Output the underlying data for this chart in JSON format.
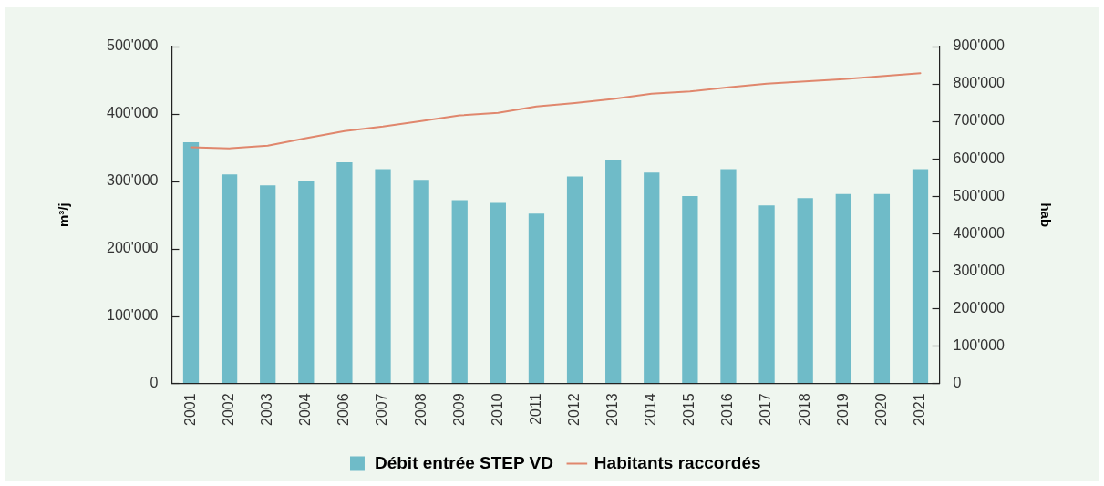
{
  "chart_data": {
    "type": "bar",
    "ylabel": "m³/j",
    "y2label": "hab",
    "categories": [
      "2001",
      "2002",
      "2003",
      "2004",
      "2006",
      "2007",
      "2008",
      "2009",
      "2010",
      "2011",
      "2012",
      "2013",
      "2014",
      "2015",
      "2016",
      "2017",
      "2018",
      "2019",
      "2020",
      "2021"
    ],
    "series": [
      {
        "name": "Débit entrée STEP VD",
        "color": "#6fbbc8",
        "values": [
          358000,
          310000,
          294000,
          300000,
          328000,
          318000,
          302000,
          272000,
          268000,
          252000,
          307000,
          331000,
          313000,
          278000,
          318000,
          264000,
          275000,
          281000,
          281000,
          318000
        ]
      },
      {
        "name": "Habitants raccordés",
        "type": "line",
        "axis": "y2",
        "color": "#e0876d",
        "values": [
          631000,
          628000,
          635000,
          655000,
          674000,
          686000,
          701000,
          716000,
          723000,
          740000,
          749000,
          760000,
          774000,
          780000,
          791000,
          801000,
          807000,
          813000,
          821000,
          829000
        ]
      }
    ],
    "ylim": [
      0,
      500000
    ],
    "yticks": [
      0,
      {
        "value": 100000,
        "label": "100'000"
      },
      {
        "value": 200000,
        "label": "200'000"
      },
      {
        "value": 300000,
        "label": "300'000"
      },
      {
        "value": 400000,
        "label": "400'000"
      },
      {
        "value": 500000,
        "label": "500'000"
      }
    ],
    "y2lim": [
      0,
      900000
    ],
    "y2ticks": [
      0,
      {
        "value": 100000,
        "label": "100'000"
      },
      {
        "value": 200000,
        "label": "200'000"
      },
      {
        "value": 300000,
        "label": "300'000"
      },
      {
        "value": 400000,
        "label": "400'000"
      },
      {
        "value": 500000,
        "label": "500'000"
      },
      {
        "value": 600000,
        "label": "600'000"
      },
      {
        "value": 700000,
        "label": "700'000"
      },
      {
        "value": 800000,
        "label": "800'000"
      },
      {
        "value": 900000,
        "label": "900'000"
      }
    ],
    "legend": "bottom",
    "marker": "none"
  }
}
